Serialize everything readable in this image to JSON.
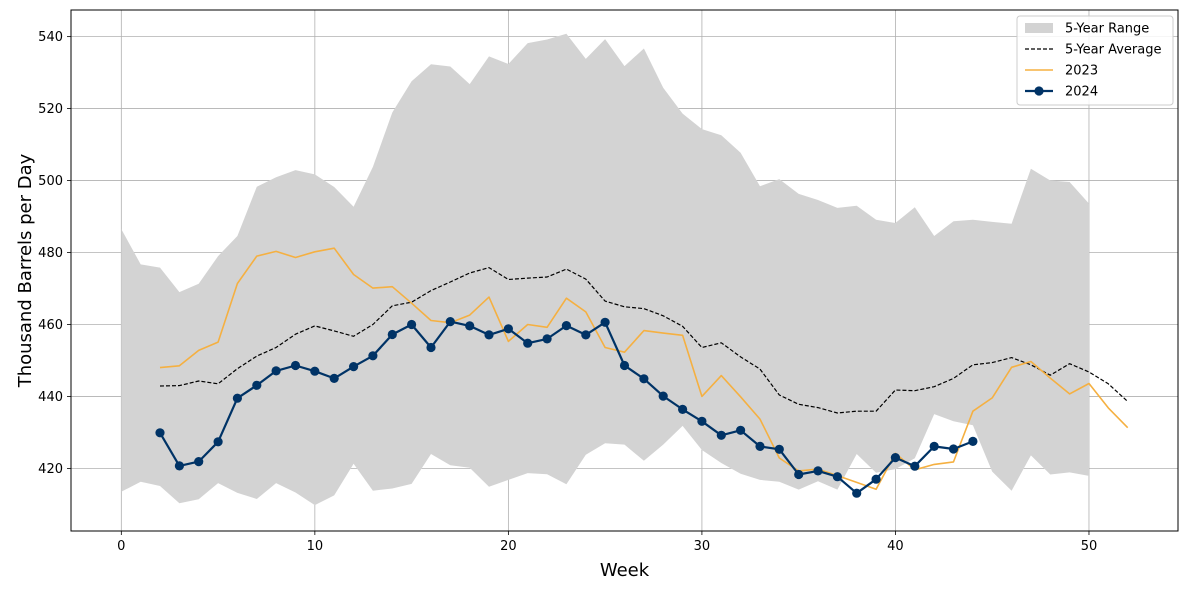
{
  "chart_data": {
    "type": "line",
    "xlabel": "Week",
    "ylabel": "Thousand Barrels per Day",
    "xlim": [
      -2.6,
      54.6
    ],
    "ylim": [
      402.6,
      547.4
    ],
    "xticks": [
      0,
      10,
      20,
      30,
      40,
      50
    ],
    "yticks": [
      420,
      440,
      460,
      480,
      500,
      520,
      540
    ],
    "grid": true,
    "legend_position": "top-right",
    "range": {
      "name": "5-Year Range",
      "color": "#d3d3d3",
      "x": [
        0,
        1,
        2,
        3,
        4,
        5,
        6,
        7,
        8,
        9,
        10,
        11,
        12,
        13,
        14,
        15,
        16,
        17,
        18,
        19,
        20,
        21,
        22,
        23,
        24,
        25,
        26,
        27,
        28,
        29,
        30,
        31,
        32,
        33,
        34,
        35,
        36,
        37,
        38,
        39,
        40,
        41,
        42,
        43,
        44,
        45,
        46,
        47,
        48,
        49,
        50
      ],
      "upper": [
        486.5,
        476.7,
        475.8,
        469.0,
        471.3,
        479.0,
        484.6,
        498.3,
        500.9,
        502.9,
        501.7,
        498.2,
        492.7,
        503.8,
        518.9,
        527.6,
        532.3,
        531.7,
        526.8,
        534.5,
        532.4,
        538.2,
        539.2,
        540.8,
        533.8,
        539.3,
        531.8,
        536.7,
        525.8,
        518.6,
        514.3,
        512.6,
        507.7,
        498.4,
        500.4,
        496.3,
        494.6,
        492.4,
        493.0,
        489.1,
        488.2,
        492.6,
        484.6,
        488.7,
        489.1,
        488.5,
        488.0,
        503.3,
        500.0,
        499.6,
        493.6
      ],
      "lower": [
        413.5,
        416.3,
        415.1,
        410.3,
        411.4,
        415.9,
        413.2,
        411.5,
        415.9,
        413.3,
        409.8,
        412.5,
        421.3,
        413.8,
        414.4,
        415.7,
        424.0,
        420.9,
        420.2,
        414.9,
        416.8,
        418.7,
        418.4,
        415.6,
        423.8,
        427.0,
        426.6,
        422.1,
        426.6,
        431.8,
        425.1,
        421.5,
        418.5,
        416.8,
        416.3,
        414.1,
        416.4,
        414.1,
        424.0,
        418.8,
        419.8,
        422.8,
        435.1,
        433.1,
        432.0,
        419.1,
        413.8,
        423.6,
        418.3,
        418.9,
        417.9
      ]
    },
    "series": [
      {
        "name": "5-Year Average",
        "color": "#000000",
        "style": "dashed",
        "x": [
          2,
          3,
          4,
          5,
          6,
          7,
          8,
          9,
          10,
          11,
          12,
          13,
          14,
          15,
          16,
          17,
          18,
          19,
          20,
          21,
          22,
          23,
          24,
          25,
          26,
          27,
          28,
          29,
          30,
          31,
          32,
          33,
          34,
          35,
          36,
          37,
          38,
          39,
          40,
          41,
          42,
          43,
          44,
          45,
          46,
          47,
          48,
          49,
          50,
          51,
          52
        ],
        "values": [
          442.9,
          443.0,
          444.3,
          443.5,
          447.7,
          451.2,
          453.6,
          457.3,
          459.6,
          458.2,
          456.7,
          460.0,
          465.2,
          466.2,
          469.4,
          471.8,
          474.3,
          475.8,
          472.5,
          472.9,
          473.2,
          475.4,
          472.6,
          466.5,
          464.9,
          464.4,
          462.4,
          459.5,
          453.6,
          454.9,
          451.0,
          447.6,
          440.4,
          437.8,
          436.9,
          435.4,
          435.9,
          435.9,
          441.8,
          441.6,
          442.7,
          445.0,
          448.8,
          449.4,
          450.8,
          448.8,
          445.9,
          449.1,
          446.8,
          443.5,
          438.6
        ]
      },
      {
        "name": "2023",
        "color": "#f5b041",
        "style": "solid",
        "x": [
          2,
          3,
          4,
          5,
          6,
          7,
          8,
          9,
          10,
          11,
          12,
          13,
          14,
          15,
          16,
          17,
          18,
          19,
          20,
          21,
          22,
          23,
          24,
          25,
          26,
          27,
          28,
          29,
          30,
          31,
          32,
          33,
          34,
          35,
          36,
          37,
          38,
          39,
          40,
          41,
          42,
          43,
          44,
          45,
          46,
          47,
          48,
          49,
          50,
          51,
          52
        ],
        "values": [
          448.0,
          448.5,
          452.8,
          455.1,
          471.4,
          479.0,
          480.3,
          478.6,
          480.2,
          481.2,
          473.9,
          470.1,
          470.5,
          465.9,
          461.1,
          460.5,
          462.6,
          467.6,
          455.3,
          460.0,
          459.2,
          467.3,
          463.5,
          453.6,
          452.3,
          458.3,
          457.6,
          457.0,
          440.0,
          445.8,
          439.9,
          433.7,
          422.9,
          419.3,
          419.8,
          418.0,
          416.1,
          414.2,
          424.2,
          419.6,
          421.1,
          421.8,
          435.9,
          439.6,
          448.1,
          449.7,
          445.1,
          440.7,
          443.6,
          436.8,
          431.3
        ]
      },
      {
        "name": "2024",
        "color": "#003366",
        "style": "solid-marker",
        "x": [
          2,
          3,
          4,
          5,
          6,
          7,
          8,
          9,
          10,
          11,
          12,
          13,
          14,
          15,
          16,
          17,
          18,
          19,
          20,
          21,
          22,
          23,
          24,
          25,
          26,
          27,
          28,
          29,
          30,
          31,
          32,
          33,
          34,
          35,
          36,
          37,
          38,
          39,
          40,
          41,
          42,
          43,
          44
        ],
        "values": [
          429.9,
          420.7,
          421.9,
          427.4,
          439.5,
          443.1,
          447.1,
          448.6,
          447.0,
          445.0,
          448.3,
          451.3,
          457.2,
          460.0,
          453.6,
          460.8,
          459.6,
          457.1,
          458.8,
          454.8,
          456.0,
          459.7,
          457.1,
          460.6,
          448.6,
          444.9,
          440.1,
          436.4,
          433.1,
          429.2,
          430.6,
          426.1,
          425.3,
          418.3,
          419.3,
          417.7,
          413.1,
          417.0,
          423.0,
          420.6,
          426.1,
          425.4,
          427.5
        ]
      }
    ]
  }
}
